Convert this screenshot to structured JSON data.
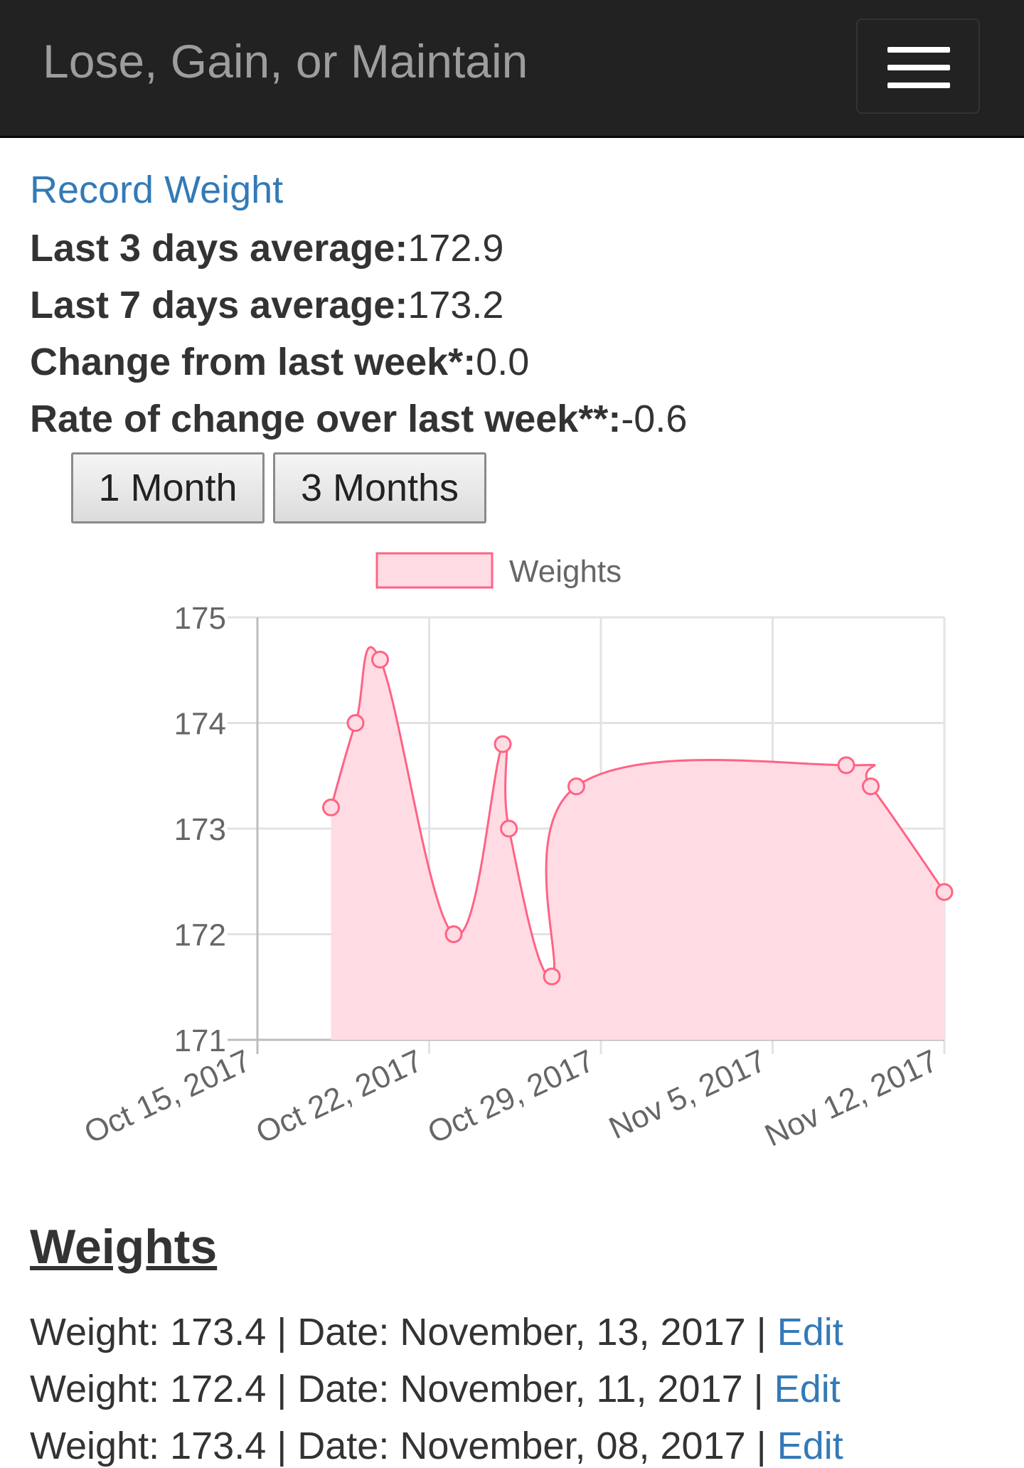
{
  "app": {
    "title": "Lose, Gain, or Maintain"
  },
  "nav": {
    "menu_icon": "hamburger-menu-icon"
  },
  "record_link": "Record Weight",
  "stats": [
    {
      "label": "Last 3 days average:",
      "value": "172.9"
    },
    {
      "label": "Last 7 days average:",
      "value": "173.2"
    },
    {
      "label": "Change from last week*:",
      "value": "0.0"
    },
    {
      "label": "Rate of change over last week**:",
      "value": "-0.6"
    }
  ],
  "range_buttons": [
    "1 Month",
    "3 Months"
  ],
  "chart_data": {
    "type": "area",
    "series": [
      {
        "name": "Weights",
        "color": "#ff6384",
        "fill": "#ffdce4",
        "points": [
          {
            "x": "2017-10-18",
            "y": 173.2
          },
          {
            "x": "2017-10-19",
            "y": 174.0
          },
          {
            "x": "2017-10-20",
            "y": 174.6
          },
          {
            "x": "2017-10-23",
            "y": 172.0
          },
          {
            "x": "2017-10-25",
            "y": 173.8
          },
          {
            "x": "2017-10-25T06:00",
            "y": 173.0
          },
          {
            "x": "2017-10-27",
            "y": 171.6
          },
          {
            "x": "2017-10-28",
            "y": 173.4
          },
          {
            "x": "2017-11-08",
            "y": 173.6
          },
          {
            "x": "2017-11-09",
            "y": 173.4
          },
          {
            "x": "2017-11-12",
            "y": 172.4
          }
        ]
      }
    ],
    "x_ticks": [
      "Oct 15, 2017",
      "Oct 22, 2017",
      "Oct 29, 2017",
      "Nov 5, 2017",
      "Nov 12, 2017"
    ],
    "y_ticks": [
      "175",
      "174",
      "173",
      "172",
      "171"
    ],
    "xlim": [
      "2017-10-15",
      "2017-11-12"
    ],
    "ylim": [
      171,
      175
    ],
    "grid": true,
    "legend": "top"
  },
  "weights_section": {
    "heading": "Weights",
    "entries": [
      {
        "text": "Weight: 173.4 | Date: November, 13, 2017 | ",
        "link": "Edit"
      },
      {
        "text": "Weight: 172.4 | Date: November, 11, 2017 | ",
        "link": "Edit"
      },
      {
        "text": "Weight: 173.4 | Date: November, 08, 2017 | ",
        "link": "Edit"
      }
    ]
  }
}
